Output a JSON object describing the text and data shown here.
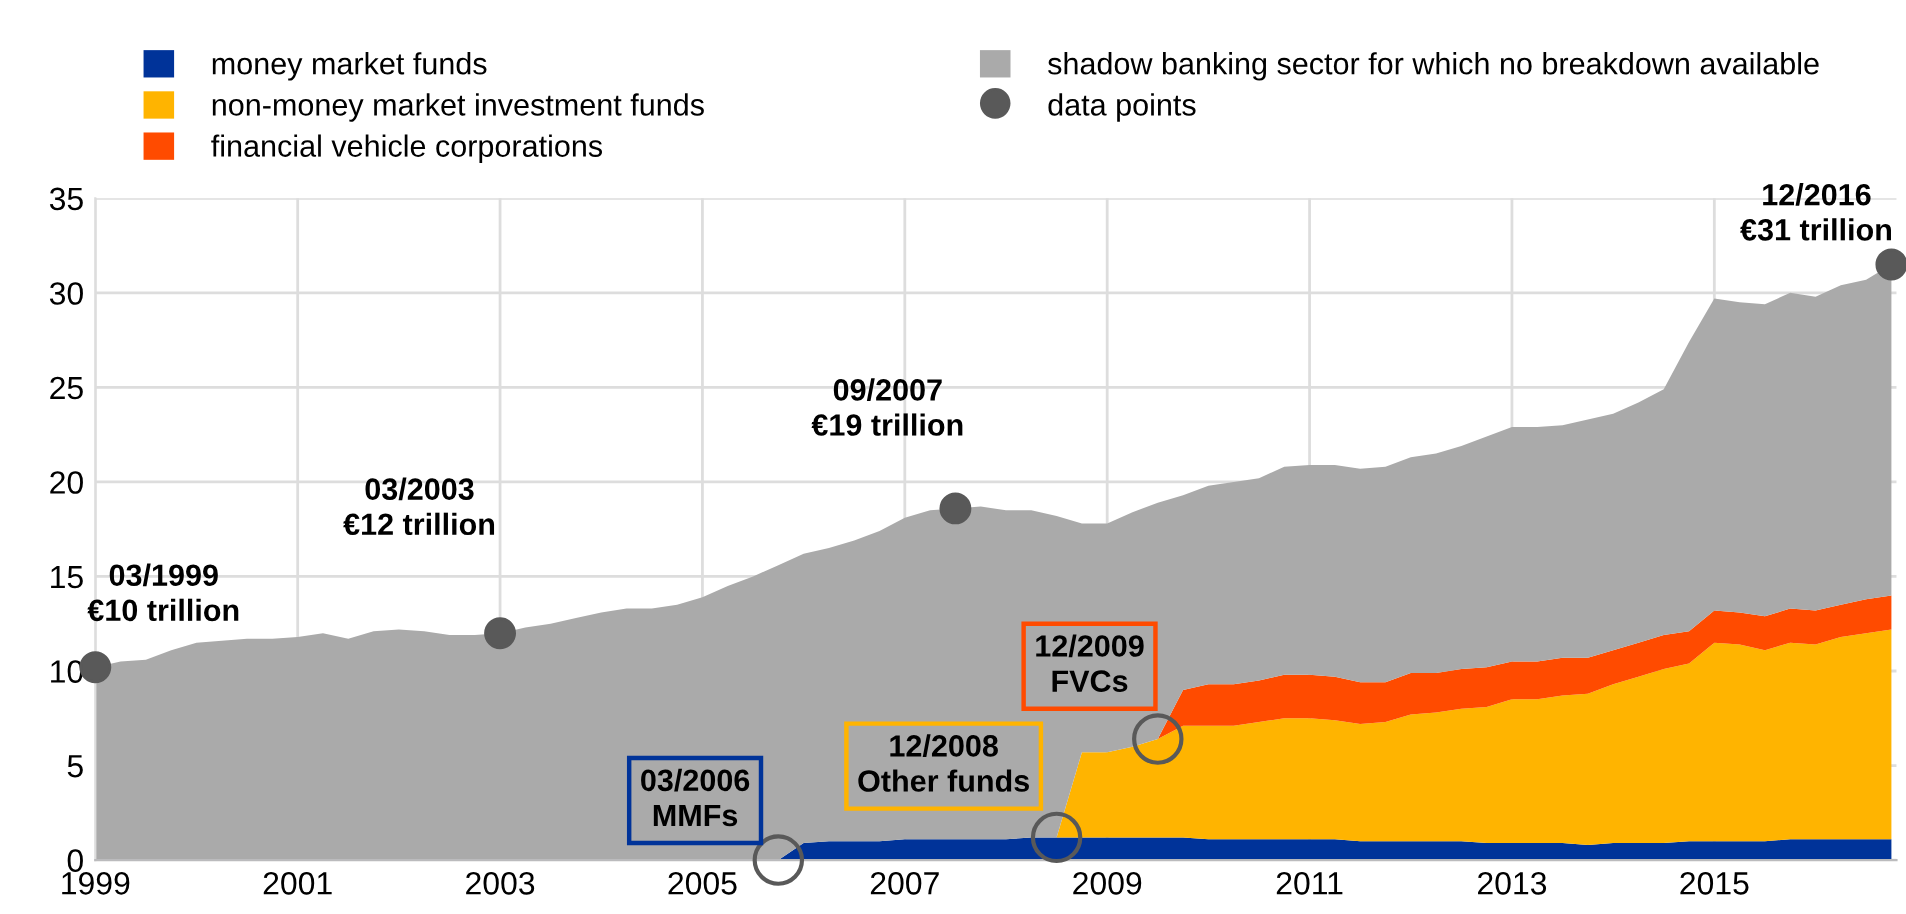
{
  "chart_data": {
    "type": "area",
    "stacked": true,
    "x": [
      1999,
      1999.25,
      1999.5,
      1999.75,
      2000,
      2000.25,
      2000.5,
      2000.75,
      2001,
      2001.25,
      2001.5,
      2001.75,
      2002,
      2002.25,
      2002.5,
      2002.75,
      2003,
      2003.25,
      2003.5,
      2003.75,
      2004,
      2004.25,
      2004.5,
      2004.75,
      2005,
      2005.25,
      2005.5,
      2005.75,
      2006,
      2006.25,
      2006.5,
      2006.75,
      2007,
      2007.25,
      2007.5,
      2007.75,
      2008,
      2008.25,
      2008.5,
      2008.75,
      2009,
      2009.25,
      2009.5,
      2009.75,
      2010,
      2010.25,
      2010.5,
      2010.75,
      2011,
      2011.25,
      2011.5,
      2011.75,
      2012,
      2012.25,
      2012.5,
      2012.75,
      2013,
      2013.25,
      2013.5,
      2013.75,
      2014,
      2014.25,
      2014.5,
      2014.75,
      2015,
      2015.25,
      2015.5,
      2015.75,
      2016,
      2016.25,
      2016.5,
      2016.75
    ],
    "series": [
      {
        "name": "money market funds",
        "color": "#003399",
        "values": [
          null,
          null,
          null,
          null,
          null,
          null,
          null,
          null,
          null,
          null,
          null,
          null,
          null,
          null,
          null,
          null,
          null,
          null,
          null,
          null,
          null,
          null,
          null,
          null,
          null,
          null,
          null,
          0,
          0.9,
          1.0,
          1.0,
          1.0,
          1.1,
          1.1,
          1.1,
          1.1,
          1.1,
          1.2,
          1.2,
          1.2,
          1.2,
          1.2,
          1.2,
          1.2,
          1.1,
          1.1,
          1.1,
          1.1,
          1.1,
          1.1,
          1.0,
          1.0,
          1.0,
          1.0,
          1.0,
          0.9,
          0.9,
          0.9,
          0.9,
          0.8,
          0.9,
          0.9,
          0.9,
          1.0,
          1.0,
          1.0,
          1.0,
          1.1,
          1.1,
          1.1,
          1.1,
          1.1
        ]
      },
      {
        "name": "non-money market investment funds",
        "color": "#ffb400",
        "values": [
          null,
          null,
          null,
          null,
          null,
          null,
          null,
          null,
          null,
          null,
          null,
          null,
          null,
          null,
          null,
          null,
          null,
          null,
          null,
          null,
          null,
          null,
          null,
          null,
          null,
          null,
          null,
          null,
          null,
          null,
          null,
          null,
          null,
          null,
          null,
          null,
          null,
          null,
          0,
          4.5,
          4.5,
          4.8,
          5.2,
          5.9,
          6.0,
          6.0,
          6.2,
          6.4,
          6.4,
          6.3,
          6.2,
          6.3,
          6.7,
          6.8,
          7.0,
          7.2,
          7.6,
          7.6,
          7.8,
          8.0,
          8.4,
          8.8,
          9.2,
          9.4,
          10.5,
          10.4,
          10.1,
          10.4,
          10.3,
          10.7,
          10.9,
          11.1
        ]
      },
      {
        "name": "financial vehicle corporations",
        "color": "#ff4b00",
        "values": [
          null,
          null,
          null,
          null,
          null,
          null,
          null,
          null,
          null,
          null,
          null,
          null,
          null,
          null,
          null,
          null,
          null,
          null,
          null,
          null,
          null,
          null,
          null,
          null,
          null,
          null,
          null,
          null,
          null,
          null,
          null,
          null,
          null,
          null,
          null,
          null,
          null,
          null,
          null,
          null,
          null,
          null,
          0,
          1.9,
          2.2,
          2.2,
          2.2,
          2.3,
          2.3,
          2.3,
          2.2,
          2.1,
          2.2,
          2.1,
          2.1,
          2.1,
          2.0,
          2.0,
          2.0,
          1.9,
          1.8,
          1.8,
          1.8,
          1.7,
          1.7,
          1.7,
          1.8,
          1.8,
          1.8,
          1.7,
          1.8,
          1.8
        ]
      },
      {
        "name": "shadow banking sector for which no breakdown available",
        "color": "#aaaaaa",
        "values": [
          10.2,
          10.5,
          10.6,
          11.1,
          11.5,
          11.6,
          11.7,
          11.7,
          11.8,
          12.0,
          11.7,
          12.1,
          12.2,
          12.1,
          11.9,
          11.9,
          12.0,
          12.3,
          12.5,
          12.8,
          13.1,
          13.3,
          13.3,
          13.5,
          13.9,
          14.5,
          15.0,
          15.6,
          15.3,
          15.5,
          15.9,
          16.4,
          17.0,
          17.4,
          17.5,
          17.6,
          17.4,
          17.3,
          17.0,
          12.1,
          12.1,
          12.4,
          12.5,
          10.3,
          10.5,
          10.7,
          10.7,
          11.0,
          11.1,
          11.2,
          11.3,
          11.4,
          11.4,
          11.6,
          11.8,
          12.2,
          12.4,
          12.4,
          12.3,
          12.6,
          12.5,
          12.7,
          13.0,
          15.3,
          16.5,
          16.4,
          16.5,
          16.7,
          16.6,
          16.9,
          16.9,
          17.5
        ]
      },
      {
        "name": "data points",
        "type": "scatter",
        "color": "#595959",
        "x": [
          1999,
          2003,
          2007.5,
          2016.75
        ],
        "values": [
          10.2,
          12.0,
          18.6,
          31.5
        ]
      },
      {
        "type": "scatter",
        "color": "#595959",
        "x": [
          2005.75,
          2008.5,
          2009.5
        ],
        "values": [
          0,
          1.2,
          6.4
        ]
      }
    ],
    "annotations": [
      "03/1999\n€10 trillion",
      "03/2003\n€12 trillion",
      "09/2007\n€19 trillion",
      "12/2016\n€31 trillion",
      "03/2006\nMMFs",
      "12/2008\nOther funds",
      "12/2009\nFVCs"
    ],
    "xlim": [
      1999,
      2016.8
    ],
    "xticks": [
      1999,
      2001,
      2003,
      2005,
      2007,
      2009,
      2011,
      2013,
      2015
    ],
    "ylim": [
      0,
      35
    ],
    "yticks": [
      0,
      5,
      10,
      15,
      20,
      25,
      30,
      35
    ],
    "grid": true,
    "legend": "top"
  }
}
